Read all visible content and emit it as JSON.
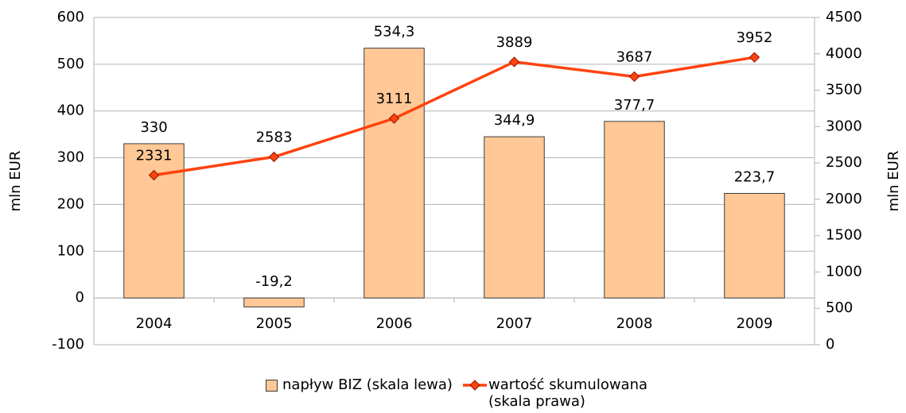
{
  "chart_data": {
    "type": "bar",
    "categories": [
      "2004",
      "2005",
      "2006",
      "2007",
      "2008",
      "2009"
    ],
    "series": [
      {
        "name": "napływ BIZ (skala lewa)",
        "type": "bar",
        "color": "#ffc896",
        "values": [
          330,
          -19.2,
          534.3,
          344.9,
          377.7,
          223.7
        ],
        "value_labels": [
          "330",
          "-19,2",
          "534,3",
          "344,9",
          "377,7",
          "223,7"
        ]
      },
      {
        "name": "wartość skumulowana (skala prawa)",
        "type": "line",
        "axis": "y2",
        "color": "#ff420e",
        "values": [
          2331,
          2583,
          3111,
          3889,
          3687,
          3952
        ]
      }
    ],
    "ylabel": "mln EUR",
    "y2label": "mln EUR",
    "ylim": [
      -100,
      600
    ],
    "yticks": [
      -100,
      0,
      100,
      200,
      300,
      400,
      500,
      600
    ],
    "y2lim": [
      0,
      4500
    ],
    "y2ticks": [
      0,
      500,
      1000,
      1500,
      2000,
      2500,
      3000,
      3500,
      4000,
      4500
    ],
    "grid": true,
    "legend": "bottom"
  }
}
